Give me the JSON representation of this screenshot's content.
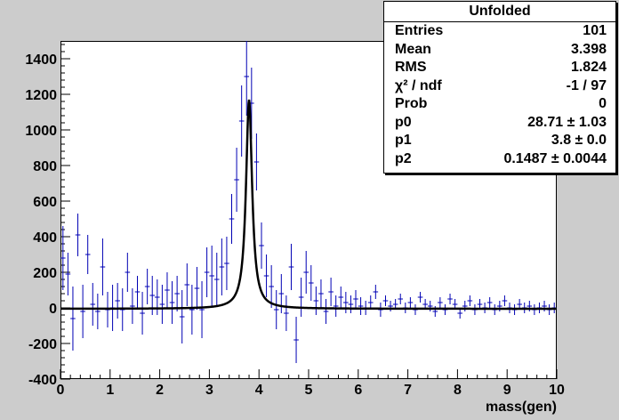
{
  "colors": {
    "background": "#cccccc",
    "frame": "#ffffff",
    "data_points": "#0000b4",
    "fit_line": "#000000"
  },
  "stats_box": {
    "title": "Unfolded",
    "rows": [
      {
        "label": "Entries",
        "value": "101"
      },
      {
        "label": "Mean",
        "value": "3.398"
      },
      {
        "label": "RMS",
        "value": "1.824"
      },
      {
        "label": "χ² / ndf",
        "value": "-1 / 97"
      },
      {
        "label": "Prob",
        "value": "0"
      },
      {
        "label": "p0",
        "value": "28.71 ± 1.03"
      },
      {
        "label": "p1",
        "value": "3.8 ± 0.0"
      },
      {
        "label": "p2",
        "value": "0.1487 ± 0.0044"
      }
    ]
  },
  "chart_data": {
    "type": "scatter",
    "title": "",
    "xlabel": "mass(gen)",
    "ylabel": "",
    "xlim": [
      0,
      10
    ],
    "ylim": [
      -400,
      1500
    ],
    "x_ticks": [
      0,
      1,
      2,
      3,
      4,
      5,
      6,
      7,
      8,
      9,
      10
    ],
    "y_ticks": [
      -400,
      -200,
      0,
      200,
      400,
      600,
      800,
      1000,
      1200,
      1400
    ],
    "grid": false,
    "series": [
      {
        "name": "",
        "kind": "points_with_errors",
        "x": [
          0.05,
          0.15,
          0.25,
          0.35,
          0.45,
          0.55,
          0.65,
          0.75,
          0.85,
          0.95,
          1.05,
          1.15,
          1.25,
          1.35,
          1.45,
          1.55,
          1.65,
          1.75,
          1.85,
          1.95,
          2.05,
          2.15,
          2.25,
          2.35,
          2.45,
          2.55,
          2.65,
          2.75,
          2.85,
          2.95,
          3.05,
          3.15,
          3.25,
          3.35,
          3.45,
          3.55,
          3.65,
          3.75,
          3.85,
          3.95,
          4.05,
          4.15,
          4.25,
          4.35,
          4.45,
          4.55,
          4.65,
          4.75,
          4.85,
          4.95,
          5.05,
          5.15,
          5.25,
          5.35,
          5.45,
          5.55,
          5.65,
          5.75,
          5.85,
          5.95,
          6.05,
          6.15,
          6.25,
          6.35,
          6.45,
          6.55,
          6.65,
          6.75,
          6.85,
          6.95,
          7.05,
          7.15,
          7.25,
          7.35,
          7.45,
          7.55,
          7.65,
          7.75,
          7.85,
          7.95,
          8.05,
          8.15,
          8.25,
          8.35,
          8.45,
          8.55,
          8.65,
          8.75,
          8.85,
          8.95,
          9.05,
          9.15,
          9.25,
          9.35,
          9.45,
          9.55,
          9.65,
          9.75,
          9.85,
          9.95
        ],
        "y": [
          280,
          190,
          -60,
          410,
          -20,
          300,
          20,
          -20,
          230,
          -10,
          0,
          40,
          -10,
          200,
          10,
          90,
          -30,
          120,
          70,
          60,
          20,
          100,
          30,
          80,
          -50,
          130,
          -10,
          110,
          -10,
          200,
          180,
          160,
          230,
          250,
          500,
          720,
          1050,
          1300,
          1150,
          820,
          350,
          180,
          120,
          -10,
          80,
          -30,
          230,
          -180,
          60,
          200,
          140,
          40,
          80,
          -20,
          90,
          10,
          60,
          30,
          20,
          50,
          10,
          0,
          30,
          90,
          -10,
          40,
          10,
          20,
          50,
          0,
          30,
          -10,
          60,
          20,
          10,
          -20,
          30,
          -10,
          50,
          20,
          -30,
          10,
          40,
          -10,
          20,
          0,
          30,
          -10,
          10,
          40,
          0,
          -10,
          20,
          0,
          10,
          -10,
          0,
          10,
          -10,
          0
        ],
        "err": [
          180,
          120,
          180,
          120,
          150,
          110,
          120,
          100,
          160,
          100,
          130,
          100,
          120,
          110,
          100,
          90,
          120,
          100,
          110,
          100,
          110,
          100,
          120,
          100,
          150,
          120,
          140,
          120,
          160,
          140,
          170,
          150,
          160,
          150,
          140,
          180,
          200,
          220,
          200,
          160,
          130,
          120,
          120,
          110,
          110,
          100,
          130,
          130,
          110,
          120,
          100,
          80,
          80,
          70,
          80,
          60,
          60,
          60,
          50,
          50,
          50,
          40,
          40,
          40,
          40,
          30,
          30,
          30,
          30,
          30,
          30,
          30,
          30,
          30,
          30,
          30,
          30,
          30,
          30,
          30,
          30,
          30,
          30,
          30,
          30,
          30,
          30,
          30,
          30,
          30,
          30,
          30,
          30,
          30,
          30,
          30,
          30,
          30,
          30,
          30
        ]
      },
      {
        "name": "",
        "kind": "fit_curve",
        "function": "Breit-Wigner",
        "params": {
          "p0": 28.71,
          "p1": 3.8,
          "p2": 0.1487
        }
      }
    ]
  }
}
